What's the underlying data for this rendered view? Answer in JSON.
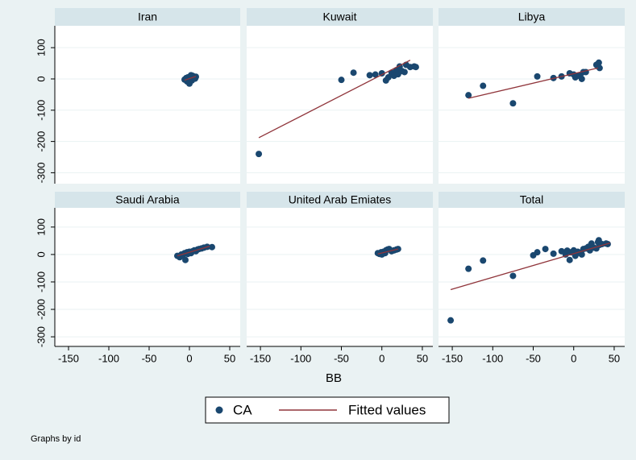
{
  "chart_data": [
    {
      "type": "scatter",
      "title": "Iran",
      "series": [
        {
          "name": "CA",
          "color": "#1a476f",
          "x": [
            -6,
            -4,
            -3,
            -2,
            -1,
            0,
            1,
            2,
            3,
            4,
            5,
            6,
            7,
            8,
            0,
            2
          ],
          "values": [
            -2,
            3,
            -8,
            5,
            0,
            -15,
            8,
            2,
            -5,
            10,
            4,
            6,
            1,
            7,
            -10,
            12
          ]
        },
        {
          "name": "Fitted values",
          "color": "#90353b",
          "type": "line",
          "x": [
            -6,
            8
          ],
          "values": [
            -4,
            8
          ]
        }
      ]
    },
    {
      "type": "scatter",
      "title": "Kuwait",
      "series": [
        {
          "name": "CA",
          "color": "#1a476f",
          "x": [
            -152,
            -50,
            -35,
            -15,
            -8,
            0,
            5,
            8,
            12,
            15,
            18,
            20,
            22,
            25,
            28,
            30,
            35,
            40,
            42
          ],
          "values": [
            -240,
            -3,
            20,
            12,
            14,
            18,
            -5,
            5,
            20,
            10,
            28,
            15,
            40,
            25,
            22,
            45,
            38,
            40,
            38
          ]
        },
        {
          "name": "Fitted values",
          "color": "#90353b",
          "type": "line",
          "x": [
            -152,
            35
          ],
          "values": [
            -188,
            60
          ]
        }
      ]
    },
    {
      "type": "scatter",
      "title": "Libya",
      "series": [
        {
          "name": "CA",
          "color": "#1a476f",
          "x": [
            -130,
            -112,
            -75,
            -45,
            -25,
            -15,
            -5,
            0,
            2,
            5,
            8,
            10,
            12,
            15,
            28,
            30,
            31,
            32
          ],
          "values": [
            -52,
            -22,
            -78,
            8,
            3,
            8,
            18,
            14,
            5,
            10,
            12,
            0,
            22,
            22,
            45,
            40,
            52,
            35
          ]
        },
        {
          "name": "Fitted values",
          "color": "#90353b",
          "type": "line",
          "x": [
            -130,
            30
          ],
          "values": [
            -62,
            35
          ]
        }
      ]
    },
    {
      "type": "scatter",
      "title": "Saudi Arabia",
      "series": [
        {
          "name": "CA",
          "color": "#1a476f",
          "x": [
            -15,
            -12,
            -10,
            -8,
            -6,
            -5,
            -3,
            -2,
            0,
            2,
            4,
            6,
            8,
            10,
            12,
            15,
            18,
            22,
            28
          ],
          "values": [
            -5,
            -10,
            0,
            -3,
            5,
            -20,
            8,
            2,
            10,
            5,
            12,
            15,
            12,
            18,
            20,
            22,
            25,
            28,
            27
          ]
        },
        {
          "name": "Fitted values",
          "color": "#90353b",
          "type": "line",
          "x": [
            -15,
            25
          ],
          "values": [
            -5,
            30
          ]
        }
      ]
    },
    {
      "type": "scatter",
      "title": "United Arab Emiates",
      "series": [
        {
          "name": "CA",
          "color": "#1a476f",
          "x": [
            -5,
            -3,
            -1,
            0,
            2,
            4,
            5,
            7,
            9,
            12,
            15,
            18,
            20
          ],
          "values": [
            5,
            2,
            8,
            0,
            10,
            5,
            15,
            18,
            20,
            12,
            15,
            18,
            20
          ]
        },
        {
          "name": "Fitted values",
          "color": "#90353b",
          "type": "line",
          "x": [
            -5,
            20
          ],
          "values": [
            2,
            20
          ]
        }
      ]
    },
    {
      "type": "scatter",
      "title": "Total",
      "series": [
        {
          "name": "CA",
          "color": "#1a476f",
          "x": [
            -152,
            -130,
            -112,
            -75,
            -50,
            -45,
            -35,
            -25,
            -15,
            -10,
            -8,
            -5,
            -3,
            0,
            2,
            5,
            8,
            10,
            12,
            15,
            18,
            20,
            22,
            25,
            28,
            30,
            31,
            32,
            35,
            40,
            42
          ],
          "values": [
            -240,
            -52,
            -22,
            -78,
            -3,
            8,
            20,
            3,
            12,
            0,
            14,
            -20,
            8,
            15,
            -5,
            10,
            5,
            0,
            20,
            22,
            28,
            15,
            40,
            25,
            22,
            45,
            52,
            35,
            38,
            40,
            38
          ]
        },
        {
          "name": "Fitted values",
          "color": "#90353b",
          "type": "line",
          "x": [
            -152,
            45
          ],
          "values": [
            -128,
            42
          ]
        }
      ]
    }
  ],
  "axes": {
    "xlim": [
      -167,
      63
    ],
    "ylim": [
      -335,
      170
    ],
    "xticks": [
      -150,
      -100,
      -50,
      0,
      50
    ],
    "yticks": [
      100,
      0,
      -100,
      -200,
      -300
    ]
  },
  "x_label": "BB",
  "note": "Graphs by id"
}
